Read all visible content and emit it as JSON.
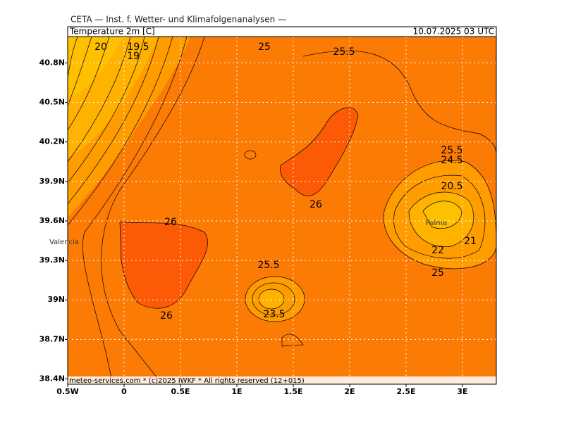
{
  "header": {
    "source": "CETA — Inst. f. Wetter- und Klimafolgenanalysen —",
    "title": "Temperature 2m [C]",
    "time": "10.07.2025 03 UTC"
  },
  "map": {
    "xlim": [
      -0.5,
      3.3
    ],
    "ylim": [
      38.36,
      41.0
    ],
    "xticks": [
      {
        "value": -0.5,
        "label": "0.5W"
      },
      {
        "value": 0,
        "label": "0"
      },
      {
        "value": 0.5,
        "label": "0.5E"
      },
      {
        "value": 1,
        "label": "1E"
      },
      {
        "value": 1.5,
        "label": "1.5E"
      },
      {
        "value": 2,
        "label": "2E"
      },
      {
        "value": 2.5,
        "label": "2.5E"
      },
      {
        "value": 3,
        "label": "3E"
      }
    ],
    "yticks": [
      {
        "value": 40.8,
        "label": "40.8N"
      },
      {
        "value": 40.5,
        "label": "40.5N"
      },
      {
        "value": 40.2,
        "label": "40.2N"
      },
      {
        "value": 39.9,
        "label": "39.9N"
      },
      {
        "value": 39.6,
        "label": "39.6N"
      },
      {
        "value": 39.3,
        "label": "39.3N"
      },
      {
        "value": 39,
        "label": "39N"
      },
      {
        "value": 38.7,
        "label": "38.7N"
      },
      {
        "value": 38.4,
        "label": "38.4N"
      }
    ],
    "contour_labels": [
      20,
      19.5,
      19,
      25,
      25.5,
      25.5,
      24.5,
      20.5,
      21,
      22,
      25,
      26,
      26,
      26,
      25.5,
      23.5
    ],
    "places": [
      "Palma",
      "Valencia"
    ]
  },
  "footer": "meteo-services.com * (c)2025 IWKF * All rights reserved (12+015)"
}
